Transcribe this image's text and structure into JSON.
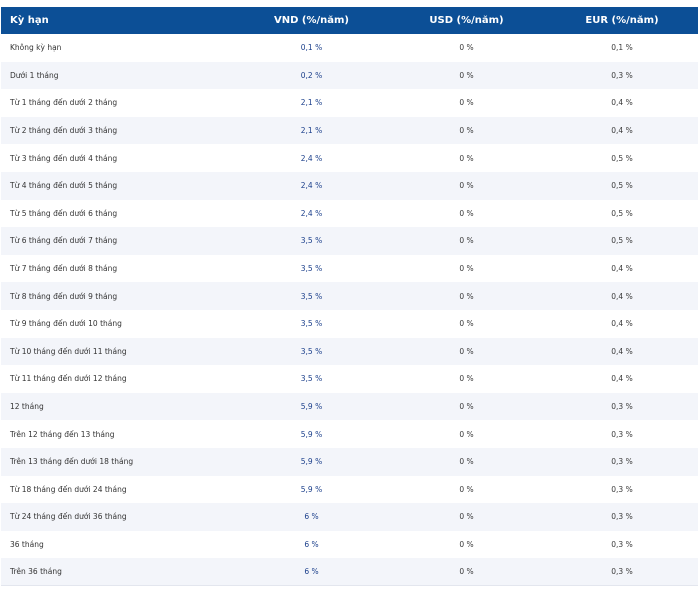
{
  "headers": {
    "term": "Kỳ hạn",
    "vnd": "VND (%/năm)",
    "usd": "USD (%/năm)",
    "eur": "EUR (%/năm)"
  },
  "rows": [
    {
      "term": "Không kỳ hạn",
      "vnd": "0,1 %",
      "usd": "0 %",
      "eur": "0,1 %"
    },
    {
      "term": "Dưới 1 tháng",
      "vnd": "0,2 %",
      "usd": "0 %",
      "eur": "0,3 %"
    },
    {
      "term": "Từ 1 tháng đến dưới 2 tháng",
      "vnd": "2,1 %",
      "usd": "0 %",
      "eur": "0,4 %"
    },
    {
      "term": "Từ 2 tháng đến dưới 3 tháng",
      "vnd": "2,1 %",
      "usd": "0 %",
      "eur": "0,4 %"
    },
    {
      "term": "Từ 3 tháng đến dưới 4 tháng",
      "vnd": "2,4 %",
      "usd": "0 %",
      "eur": "0,5 %"
    },
    {
      "term": "Từ 4 tháng đến dưới 5 tháng",
      "vnd": "2,4 %",
      "usd": "0 %",
      "eur": "0,5 %"
    },
    {
      "term": "Từ 5 tháng đến dưới 6 tháng",
      "vnd": "2,4 %",
      "usd": "0 %",
      "eur": "0,5 %"
    },
    {
      "term": "Từ 6 tháng đến dưới 7 tháng",
      "vnd": "3,5 %",
      "usd": "0 %",
      "eur": "0,5 %"
    },
    {
      "term": "Từ 7 tháng đến dưới 8 tháng",
      "vnd": "3,5 %",
      "usd": "0 %",
      "eur": "0,4 %"
    },
    {
      "term": "Từ 8 tháng đến dưới 9 tháng",
      "vnd": "3,5 %",
      "usd": "0 %",
      "eur": "0,4 %"
    },
    {
      "term": "Từ 9 tháng đến dưới 10 tháng",
      "vnd": "3,5 %",
      "usd": "0 %",
      "eur": "0,4 %"
    },
    {
      "term": "Từ 10 tháng đến dưới 11 tháng",
      "vnd": "3,5 %",
      "usd": "0 %",
      "eur": "0,4 %"
    },
    {
      "term": "Từ 11 tháng đến dưới 12 tháng",
      "vnd": "3,5 %",
      "usd": "0 %",
      "eur": "0,4 %"
    },
    {
      "term": "12 tháng",
      "vnd": "5,9 %",
      "usd": "0 %",
      "eur": "0,3 %"
    },
    {
      "term": "Trên 12 tháng đến 13 tháng",
      "vnd": "5,9 %",
      "usd": "0 %",
      "eur": "0,3 %"
    },
    {
      "term": "Trên 13 tháng đến dưới 18 tháng",
      "vnd": "5,9 %",
      "usd": "0 %",
      "eur": "0,3 %"
    },
    {
      "term": "Từ 18 tháng đến dưới 24 tháng",
      "vnd": "5,9 %",
      "usd": "0 %",
      "eur": "0,3 %"
    },
    {
      "term": "Từ 24 tháng đến dưới 36 tháng",
      "vnd": "6 %",
      "usd": "0 %",
      "eur": "0,3 %"
    },
    {
      "term": "36 tháng",
      "vnd": "6 %",
      "usd": "0 %",
      "eur": "0,3 %"
    },
    {
      "term": "Trên 36 tháng",
      "vnd": "6 %",
      "usd": "0 %",
      "eur": "0,3 %"
    }
  ],
  "colors": {
    "header_bg": "#0c4f96",
    "header_text": "#ffffff",
    "stripe_bg": "#f3f5fa",
    "vnd_text": "#1b3f8b"
  }
}
